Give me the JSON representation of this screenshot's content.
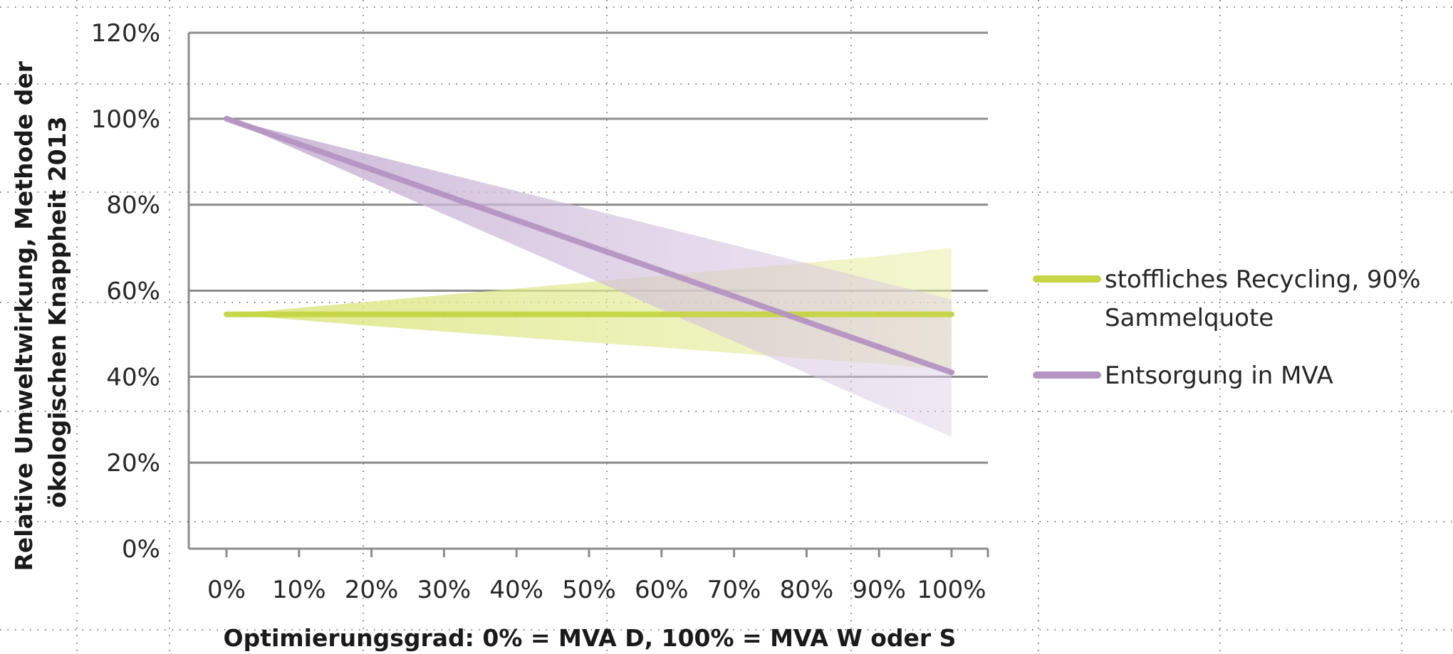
{
  "chart_data": {
    "type": "line",
    "title": "",
    "xlabel": "Optimierungsgrad: 0% = MVA D, 100% = MVA W oder S",
    "ylabel_lines": [
      "Relative Umweltwirkung, Methode der",
      "ökologischen Knappheit 2013"
    ],
    "x": [
      0,
      10,
      20,
      30,
      40,
      50,
      60,
      70,
      80,
      90,
      100
    ],
    "x_tick_labels": [
      "0%",
      "10%",
      "20%",
      "30%",
      "40%",
      "50%",
      "60%",
      "70%",
      "80%",
      "90%",
      "100%"
    ],
    "y_tick_values": [
      0,
      20,
      40,
      60,
      80,
      100,
      120
    ],
    "y_tick_labels": [
      "0%",
      "20%",
      "40%",
      "60%",
      "80%",
      "100%",
      "120%"
    ],
    "ylim": [
      0,
      120
    ],
    "grid": "horizontal",
    "legend_position": "right",
    "series": [
      {
        "name_lines": [
          "stoffliches Recycling, 90%",
          "Sammelquote"
        ],
        "color": "#c5d545",
        "values": [
          54.5,
          54.5,
          54.5,
          54.5,
          54.5,
          54.5,
          54.5,
          54.5,
          54.5,
          54.5,
          54.5
        ],
        "band_upper": [
          54.5,
          56,
          57.5,
          59,
          60.5,
          62,
          63.5,
          65,
          66.5,
          68,
          70
        ],
        "band_lower": [
          54.5,
          53.2,
          51.8,
          50.5,
          49.2,
          48,
          46.8,
          45.5,
          44.2,
          43,
          41.5
        ]
      },
      {
        "name_lines": [
          "Entsorgung in MVA"
        ],
        "color": "#b494c2",
        "values": [
          100,
          94.1,
          88.2,
          82.3,
          76.4,
          70.5,
          64.6,
          58.7,
          52.8,
          46.9,
          41
        ],
        "band_upper": [
          100,
          95.8,
          91.6,
          87.4,
          83.2,
          79,
          74.8,
          70.6,
          66.4,
          62.2,
          58
        ],
        "band_lower": [
          100,
          92.6,
          85.2,
          77.8,
          70.4,
          63,
          55.6,
          48.2,
          40.8,
          33.4,
          26
        ]
      }
    ]
  }
}
